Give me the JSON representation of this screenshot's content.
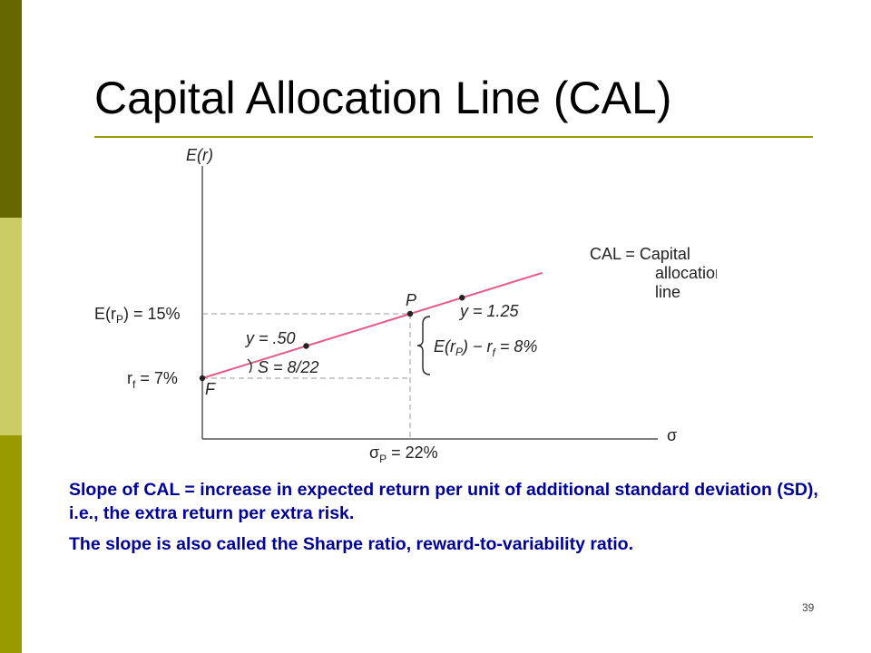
{
  "slide": {
    "title": "Capital Allocation Line (CAL)",
    "page_number": "39",
    "notes": [
      "Slope of CAL = increase in expected return per unit of additional standard deviation (SD), i.e., the extra return per extra risk.",
      "The slope is also called the Sharpe ratio, reward-to-variability ratio."
    ]
  },
  "colors": {
    "cal_line": "#e8588a",
    "axes": "#555555",
    "notes_text": "#000099",
    "sidebar_dark": "#666600",
    "sidebar_light": "#cccc66",
    "sidebar_mid": "#999900"
  },
  "chart_data": {
    "type": "line",
    "y_axis_label": "E(r)",
    "x_axis_label": "σ",
    "x_unit": "percent standard deviation",
    "y_unit": "percent expected return",
    "series": [
      {
        "name": "CAL = Capital allocation line",
        "x": [
          0,
          36
        ],
        "y": [
          7,
          20.09
        ]
      }
    ],
    "points": [
      {
        "key": "F",
        "label": "F",
        "x": 0,
        "y": 7
      },
      {
        "key": "y050",
        "label": "y = .50",
        "x": 11,
        "y": 11
      },
      {
        "key": "P",
        "label": "P",
        "x": 22,
        "y": 15
      },
      {
        "key": "y125",
        "label": "y = 1.25",
        "x": 27.5,
        "y": 17
      }
    ],
    "y_tick_labels": [
      "E(r_P) = 15%",
      "r_f = 7%"
    ],
    "x_tick_labels": [
      "σ_P = 22%"
    ],
    "annotations": {
      "slope": "S = 8/22",
      "premium": "E(r_P) − r_f = 8%",
      "cal_label_lines": [
        "CAL = Capital",
        "allocation",
        "line"
      ]
    },
    "grid": false
  }
}
